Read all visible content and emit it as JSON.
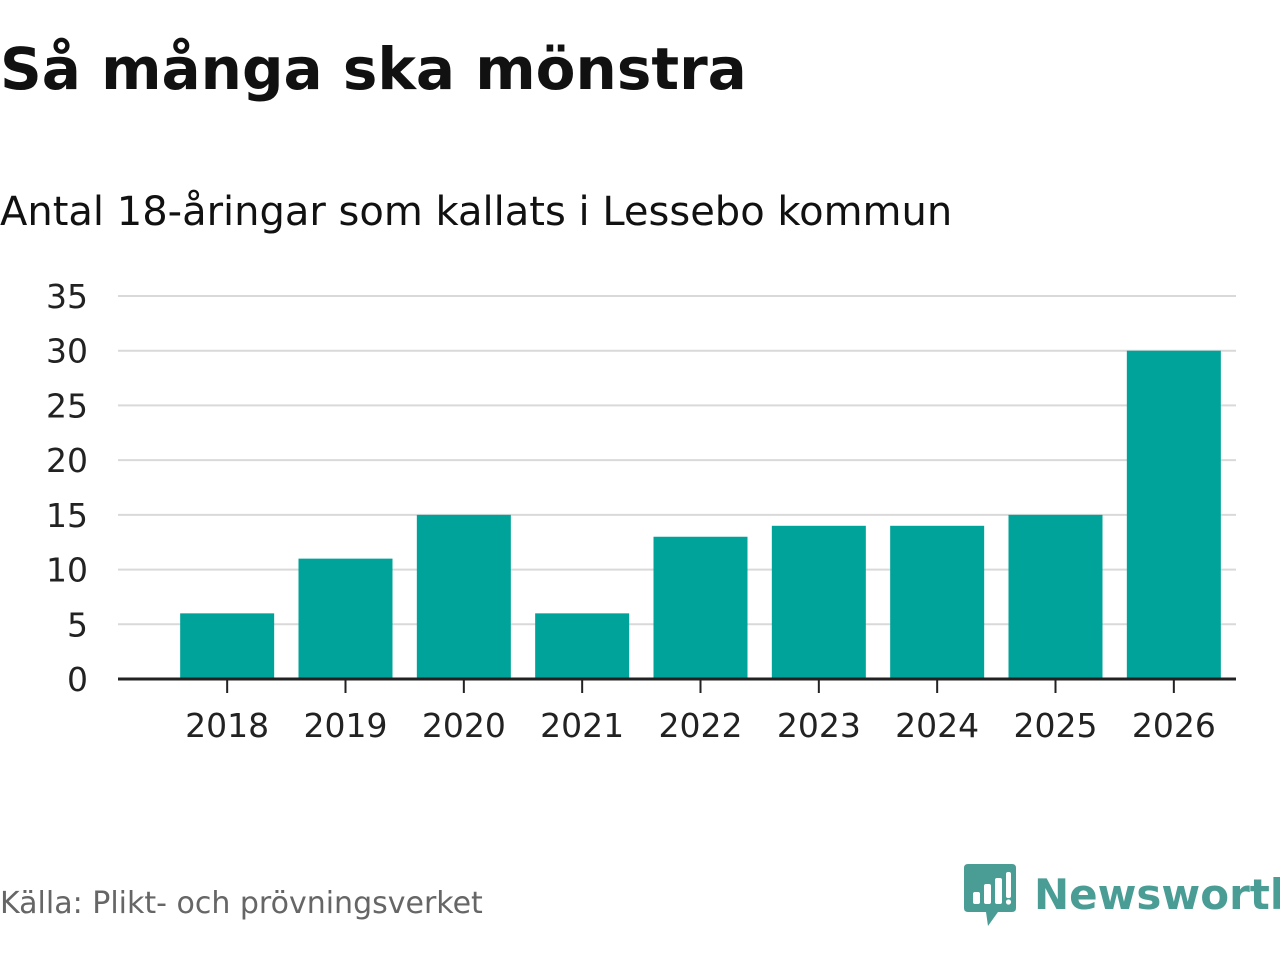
{
  "title": "Så många ska mönstra",
  "subtitle": "Antal 18-åringar som kallats i Lessebo kommun",
  "source": "Källa: Plikt- och prövningsverket",
  "brand": {
    "name": "Newsworthy",
    "icon": "newsworthy-logo-icon",
    "color": "#4a9d95"
  },
  "colors": {
    "bar": "#00a39a",
    "grid": "#d9d9d9",
    "axis": "#222222"
  },
  "chart_data": {
    "type": "bar",
    "title": "Så många ska mönstra",
    "subtitle": "Antal 18-åringar som kallats i Lessebo kommun",
    "categories": [
      "2018",
      "2019",
      "2020",
      "2021",
      "2022",
      "2023",
      "2024",
      "2025",
      "2026"
    ],
    "values": [
      6,
      11,
      15,
      6,
      13,
      14,
      14,
      15,
      30
    ],
    "xlabel": "",
    "ylabel": "",
    "ylim": [
      0,
      35
    ],
    "yticks": [
      0,
      5,
      10,
      15,
      20,
      25,
      30,
      35
    ],
    "grid": true,
    "legend": "none"
  }
}
